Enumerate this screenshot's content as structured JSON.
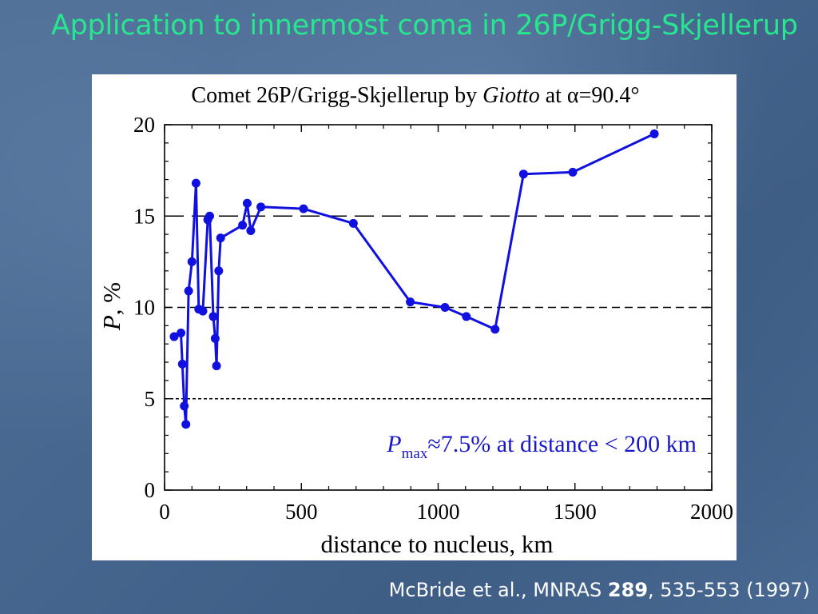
{
  "slide": {
    "title": "Application to innermost coma in 26P/Grigg-Skjellerup",
    "citation_prefix": "McBride et al., MNRAS ",
    "citation_volume": "289",
    "citation_suffix": ", 535-553 (1997)"
  },
  "colors": {
    "title": "#27e68f",
    "series": "#1010e0",
    "annotation": "#1818c8"
  },
  "chart_data": {
    "type": "line",
    "title_prefix": "Comet 26P/Grigg-Skjellerup by ",
    "title_italic": "Giotto",
    "title_suffix": " at α=90.4°",
    "xlabel": "distance to nucleus, km",
    "ylabel_italic": "P",
    "ylabel_rest": ", %",
    "xlim": [
      0,
      2000
    ],
    "ylim": [
      0,
      20
    ],
    "xticks": [
      0,
      500,
      1000,
      1500,
      2000
    ],
    "yticks": [
      0,
      5,
      10,
      15,
      20
    ],
    "grid": false,
    "reference_lines": [
      {
        "y": 15,
        "style": "long-dash"
      },
      {
        "y": 10,
        "style": "medium-dash"
      },
      {
        "y": 5,
        "style": "short-dash"
      }
    ],
    "annotation": {
      "italic": "P",
      "subscript": "max",
      "text": "≈7.5% at distance < 200 km"
    },
    "series": [
      {
        "x": [
          35,
          60,
          65,
          72,
          78,
          88,
          100,
          115,
          125,
          140,
          158,
          165,
          178,
          185,
          190,
          198,
          205,
          285,
          302,
          315,
          352,
          508,
          690,
          898,
          1025,
          1103,
          1208,
          1312,
          1492,
          1790
        ],
        "y": [
          8.4,
          8.6,
          6.9,
          4.6,
          3.6,
          10.9,
          12.5,
          16.8,
          9.9,
          9.8,
          14.8,
          15.0,
          9.5,
          8.3,
          6.8,
          12.0,
          13.8,
          14.5,
          15.7,
          14.2,
          15.5,
          15.4,
          14.6,
          10.3,
          10.0,
          9.5,
          8.8,
          17.3,
          17.4,
          19.5
        ]
      }
    ]
  }
}
